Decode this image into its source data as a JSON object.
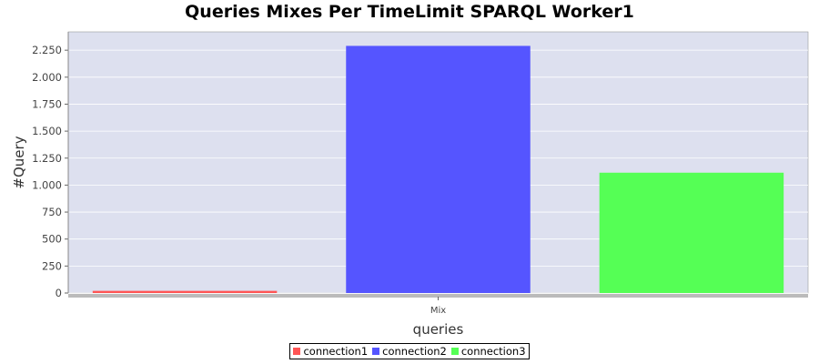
{
  "chart_data": {
    "type": "bar",
    "title": "Queries Mixes Per TimeLimit SPARQL Worker1",
    "xlabel": "queries",
    "ylabel": "#Query",
    "categories": [
      "Mix"
    ],
    "series": [
      {
        "name": "connection1",
        "values": [
          20
        ],
        "color": "#ff5555"
      },
      {
        "name": "connection2",
        "values": [
          2290
        ],
        "color": "#5555ff"
      },
      {
        "name": "connection3",
        "values": [
          1115
        ],
        "color": "#55ff55"
      }
    ],
    "ylim": [
      0,
      2420
    ],
    "yticks": [
      {
        "value": 0,
        "label": "0"
      },
      {
        "value": 250,
        "label": "250"
      },
      {
        "value": 500,
        "label": "500"
      },
      {
        "value": 750,
        "label": "750"
      },
      {
        "value": 1000,
        "label": "1.000"
      },
      {
        "value": 1250,
        "label": "1.250"
      },
      {
        "value": 1500,
        "label": "1.500"
      },
      {
        "value": 1750,
        "label": "1.750"
      },
      {
        "value": 2000,
        "label": "2.000"
      },
      {
        "value": 2250,
        "label": "2.250"
      }
    ],
    "grid": true,
    "legend_position": "bottom",
    "plot_background": "#dde0ef",
    "gridline_color": "#ffffff"
  }
}
